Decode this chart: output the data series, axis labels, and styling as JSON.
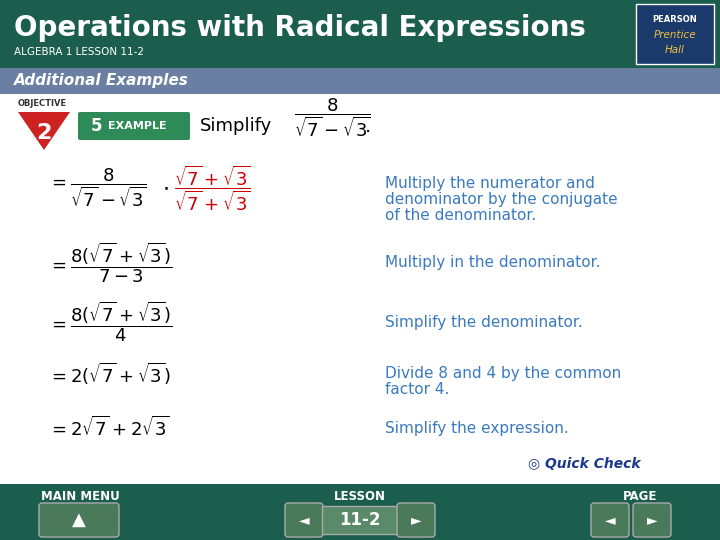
{
  "title": "Operations with Radical Expressions",
  "subtitle": "ALGEBRA 1 LESSON 11-2",
  "section": "Additional Examples",
  "obj_label": "OBJECTIVE",
  "obj_number": "2",
  "example_number": "5",
  "example_label": "EXAMPLE",
  "simplify_text": "Simplify",
  "step1_desc_line1": "Multiply the numerator and",
  "step1_desc_line2": "denominator by the conjugate",
  "step1_desc_line3": "of the denominator.",
  "step2_desc": "Multiply in the denominator.",
  "step3_desc": "Simplify the denominator.",
  "step4_desc_line1": "Divide 8 and 4 by the common",
  "step4_desc_line2": "factor 4.",
  "step5_desc": "Simplify the expression.",
  "footer_left": "MAIN MENU",
  "footer_center": "LESSON",
  "footer_page": "PAGE",
  "lesson_number": "11-2",
  "quick_check": "Quick Check",
  "header_color": "#1b5e4e",
  "section_color": "#6b7fa3",
  "footer_color": "#1b5e4e",
  "desc_color": "#3a7abf",
  "red_color": "#cc0000",
  "logo_color": "#1a3a6b",
  "triangle_color": "#cc2222",
  "example_badge_color": "#2e8b57",
  "btn_color": "#4a7a5a"
}
